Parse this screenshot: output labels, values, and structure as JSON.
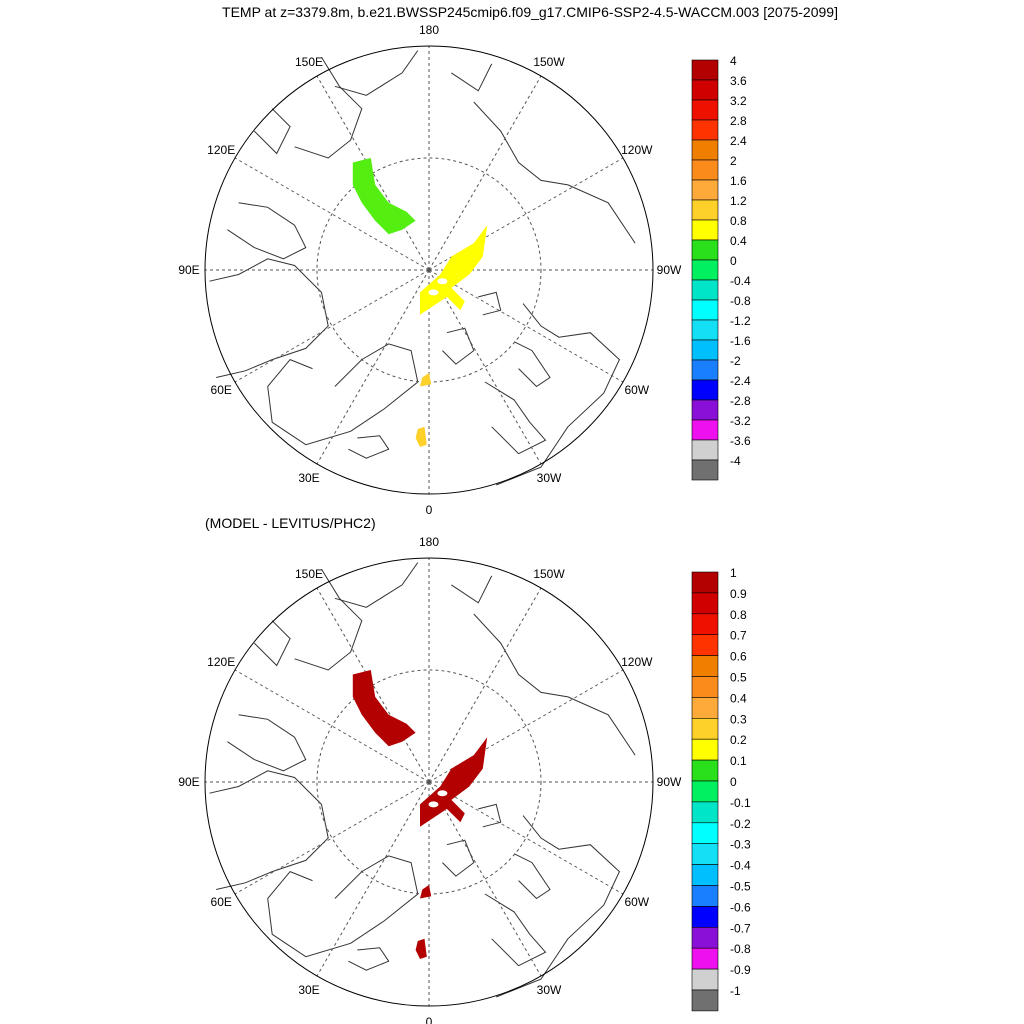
{
  "title": "TEMP at z=3379.8m, b.e21.BWSSP245cmip6.f09_g17.CMIP6-SSP2-4.5-WACCM.003 [2075-2099]",
  "subtitle": "(MODEL - LEVITUS/PHC2)",
  "longitude_labels": [
    {
      "lon": 180,
      "text": "180"
    },
    {
      "lon": -150,
      "text": "150W"
    },
    {
      "lon": 150,
      "text": "150E"
    },
    {
      "lon": -120,
      "text": "120W"
    },
    {
      "lon": 120,
      "text": "120E"
    },
    {
      "lon": -90,
      "text": "90W"
    },
    {
      "lon": 90,
      "text": "90E"
    },
    {
      "lon": -60,
      "text": "60W"
    },
    {
      "lon": 60,
      "text": "60E"
    },
    {
      "lon": -30,
      "text": "30W"
    },
    {
      "lon": 30,
      "text": "30E"
    },
    {
      "lon": 0,
      "text": "0"
    }
  ],
  "panels": [
    {
      "id": "model-panel",
      "colorbar": {
        "labels": [
          "4",
          "3.6",
          "3.2",
          "2.8",
          "2.4",
          "2",
          "1.6",
          "1.2",
          "0.8",
          "0.4",
          "0",
          "-0.4",
          "-0.8",
          "-1.2",
          "-1.6",
          "-2",
          "-2.4",
          "-2.8",
          "-3.2",
          "-3.6",
          "-4"
        ],
        "colors": [
          "#b30000",
          "#d10000",
          "#ee1100",
          "#ff3300",
          "#f07f00",
          "#fb8c1c",
          "#fdaa3a",
          "#fdd02a",
          "#ffff00",
          "#29e01b",
          "#00f060",
          "#00e5c8",
          "#00ffff",
          "#14e0f5",
          "#00bfff",
          "#1a7fff",
          "#0000ff",
          "#8a10d8",
          "#ee10ee",
          "#d0d0d0",
          "#707070"
        ]
      },
      "regions": [
        {
          "name": "canada-basin-anomaly",
          "value": 0.7,
          "color": "#55ee11"
        },
        {
          "name": "eurasian-basin-anomaly",
          "value": 1.2,
          "color": "#ffff00"
        },
        {
          "name": "fram-strait-anomaly",
          "value": 1.6,
          "color": "#fdd02a"
        },
        {
          "name": "greenland-sea-anomaly",
          "value": 1.6,
          "color": "#fdd02a"
        }
      ]
    },
    {
      "id": "difference-panel",
      "colorbar": {
        "labels": [
          "1",
          "0.9",
          "0.8",
          "0.7",
          "0.6",
          "0.5",
          "0.4",
          "0.3",
          "0.2",
          "0.1",
          "0",
          "-0.1",
          "-0.2",
          "-0.3",
          "-0.4",
          "-0.5",
          "-0.6",
          "-0.7",
          "-0.8",
          "-0.9",
          "-1"
        ],
        "colors": [
          "#b30000",
          "#d10000",
          "#ee1100",
          "#ff3300",
          "#f07f00",
          "#fb8c1c",
          "#fdaa3a",
          "#fdd02a",
          "#ffff00",
          "#29e01b",
          "#00f060",
          "#00e5c8",
          "#00ffff",
          "#14e0f5",
          "#00bfff",
          "#1a7fff",
          "#0000ff",
          "#8a10d8",
          "#ee10ee",
          "#d0d0d0",
          "#707070"
        ]
      },
      "regions": [
        {
          "name": "canada-basin-anomaly",
          "value": 1.0,
          "color": "#b30000"
        },
        {
          "name": "eurasian-basin-anomaly",
          "value": 1.0,
          "color": "#b30000"
        },
        {
          "name": "fram-strait-anomaly",
          "value": 1.0,
          "color": "#b30000"
        },
        {
          "name": "greenland-sea-anomaly",
          "value": 1.0,
          "color": "#b30000"
        }
      ]
    }
  ]
}
